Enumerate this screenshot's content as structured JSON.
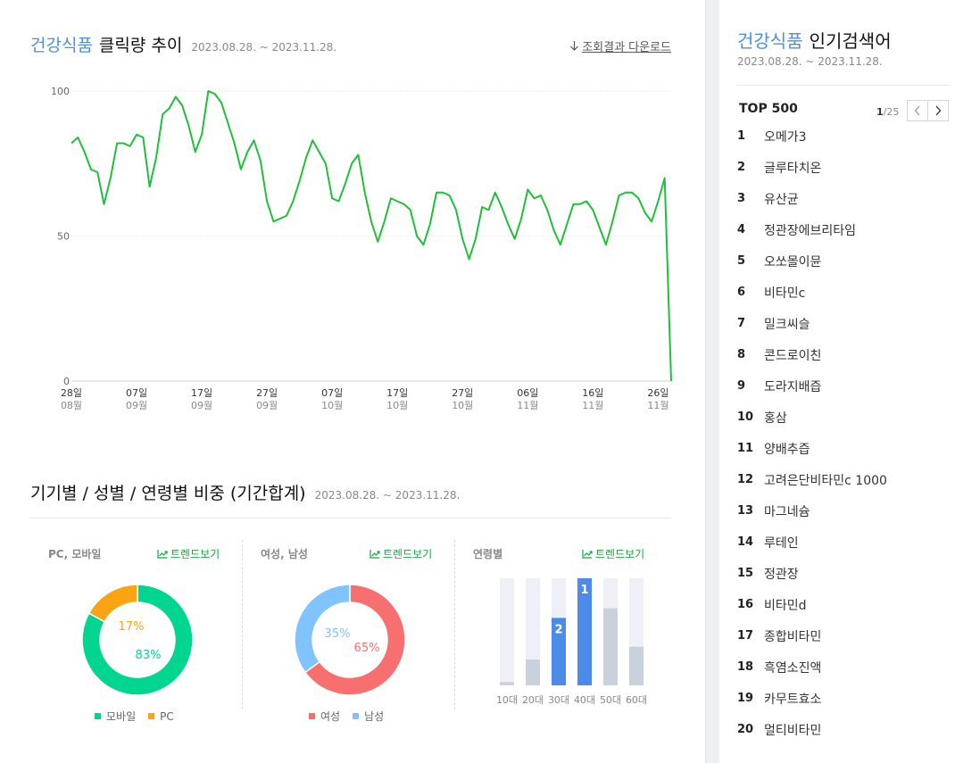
{
  "main": {
    "category": "건강식품",
    "title": "클릭량 추이",
    "period": "2023.08.28. ~ 2023.11.28.",
    "download_label": "조회결과 다운로드"
  },
  "chart_data": [
    {
      "type": "line",
      "title": "클릭량 추이",
      "ylim": [
        0,
        100
      ],
      "yticks": [
        0,
        50,
        100
      ],
      "grid": true,
      "x_tick_labels": [
        {
          "day": "28일",
          "month": "08월"
        },
        {
          "day": "07일",
          "month": "09월"
        },
        {
          "day": "17일",
          "month": "09월"
        },
        {
          "day": "27일",
          "month": "09월"
        },
        {
          "day": "07일",
          "month": "10월"
        },
        {
          "day": "17일",
          "month": "10월"
        },
        {
          "day": "27일",
          "month": "10월"
        },
        {
          "day": "06일",
          "month": "11월"
        },
        {
          "day": "16일",
          "month": "11월"
        },
        {
          "day": "26일",
          "month": "11월"
        }
      ],
      "x": [
        "2023-08-28",
        "2023-08-29",
        "2023-08-30",
        "2023-08-31",
        "2023-09-01",
        "2023-09-02",
        "2023-09-03",
        "2023-09-04",
        "2023-09-05",
        "2023-09-06",
        "2023-09-07",
        "2023-09-08",
        "2023-09-09",
        "2023-09-10",
        "2023-09-11",
        "2023-09-12",
        "2023-09-13",
        "2023-09-14",
        "2023-09-15",
        "2023-09-16",
        "2023-09-17",
        "2023-09-18",
        "2023-09-19",
        "2023-09-20",
        "2023-09-21",
        "2023-09-22",
        "2023-09-23",
        "2023-09-24",
        "2023-09-25",
        "2023-09-26",
        "2023-09-27",
        "2023-09-28",
        "2023-09-29",
        "2023-09-30",
        "2023-10-01",
        "2023-10-02",
        "2023-10-03",
        "2023-10-04",
        "2023-10-05",
        "2023-10-06",
        "2023-10-07",
        "2023-10-08",
        "2023-10-09",
        "2023-10-10",
        "2023-10-11",
        "2023-10-12",
        "2023-10-13",
        "2023-10-14",
        "2023-10-15",
        "2023-10-16",
        "2023-10-17",
        "2023-10-18",
        "2023-10-19",
        "2023-10-20",
        "2023-10-21",
        "2023-10-22",
        "2023-10-23",
        "2023-10-24",
        "2023-10-25",
        "2023-10-26",
        "2023-10-27",
        "2023-10-28",
        "2023-10-29",
        "2023-10-30",
        "2023-10-31",
        "2023-11-01",
        "2023-11-02",
        "2023-11-03",
        "2023-11-04",
        "2023-11-05",
        "2023-11-06",
        "2023-11-07",
        "2023-11-08",
        "2023-11-09",
        "2023-11-10",
        "2023-11-11",
        "2023-11-12",
        "2023-11-13",
        "2023-11-14",
        "2023-11-15",
        "2023-11-16",
        "2023-11-17",
        "2023-11-18",
        "2023-11-19",
        "2023-11-20",
        "2023-11-21",
        "2023-11-22",
        "2023-11-23",
        "2023-11-24",
        "2023-11-25",
        "2023-11-26",
        "2023-11-27",
        "2023-11-28"
      ],
      "values": [
        82,
        84,
        79,
        73,
        72,
        61,
        70,
        82,
        82,
        81,
        85,
        84,
        67,
        77,
        92,
        94,
        98,
        95,
        88,
        79,
        85,
        100,
        99,
        96,
        89,
        82,
        73,
        79,
        83,
        76,
        62,
        55,
        56,
        57,
        62,
        69,
        77,
        83,
        79,
        75,
        63,
        62,
        68,
        75,
        78,
        65,
        55,
        48,
        55,
        63,
        62,
        61,
        59,
        50,
        47,
        54,
        65,
        65,
        64,
        59,
        49,
        42,
        49,
        60,
        59,
        65,
        60,
        54,
        49,
        56,
        66,
        63,
        64,
        59,
        52,
        47,
        54,
        61,
        61,
        62,
        59,
        53,
        47,
        55,
        64,
        65,
        65,
        63,
        58,
        55,
        62,
        70,
        0
      ],
      "color": "#1fc039"
    },
    {
      "type": "pie",
      "title": "PC, 모바일",
      "labels": [
        "모바일",
        "PC"
      ],
      "values": [
        83,
        17
      ],
      "colors": [
        "#00d690",
        "#f9a413"
      ]
    },
    {
      "type": "pie",
      "title": "여성, 남성",
      "labels": [
        "여성",
        "남성"
      ],
      "values": [
        65,
        35
      ],
      "colors": [
        "#f76f6f",
        "#7fc4ff"
      ]
    },
    {
      "type": "bar",
      "title": "연령별",
      "categories": [
        "10대",
        "20대",
        "30대",
        "40대",
        "50대",
        "60대"
      ],
      "values": [
        3,
        24,
        63,
        100,
        72,
        36
      ],
      "rank_labels": [
        "",
        "",
        "2",
        "1",
        "",
        ""
      ],
      "ylim": [
        0,
        100
      ],
      "colors": {
        "top": "#4b8bea",
        "rest": "#c9d0de",
        "track": "#eef0f5"
      }
    }
  ],
  "section2": {
    "title": "기기별 / 성별 / 연령별 비중 (기간합계)",
    "period": "2023.08.28. ~ 2023.11.28.",
    "panel1": {
      "title": "PC, 모바일",
      "trend": "트렌드보기",
      "legend": [
        "모바일",
        "PC"
      ],
      "labels": [
        "83%",
        "17%"
      ]
    },
    "panel2": {
      "title": "여성, 남성",
      "trend": "트렌드보기",
      "legend": [
        "여성",
        "남성"
      ],
      "labels": [
        "65%",
        "35%"
      ]
    },
    "panel3": {
      "title": "연령별",
      "trend": "트렌드보기"
    }
  },
  "sidebar": {
    "category": "건강식품",
    "title": "인기검색어",
    "period": "2023.08.28. ~ 2023.11.28.",
    "top_label": "TOP 500",
    "page_current": "1",
    "page_total": "/25",
    "items": [
      {
        "rank": "1",
        "keyword": "오메가3"
      },
      {
        "rank": "2",
        "keyword": "글루타치온"
      },
      {
        "rank": "3",
        "keyword": "유산균"
      },
      {
        "rank": "4",
        "keyword": "정관장에브리타임"
      },
      {
        "rank": "5",
        "keyword": "오쏘몰이뮨"
      },
      {
        "rank": "6",
        "keyword": "비타민c"
      },
      {
        "rank": "7",
        "keyword": "밀크씨슬"
      },
      {
        "rank": "8",
        "keyword": "콘드로이친"
      },
      {
        "rank": "9",
        "keyword": "도라지배즙"
      },
      {
        "rank": "10",
        "keyword": "홍삼"
      },
      {
        "rank": "11",
        "keyword": "양배추즙"
      },
      {
        "rank": "12",
        "keyword": "고려은단비타민c 1000"
      },
      {
        "rank": "13",
        "keyword": "마그네슘"
      },
      {
        "rank": "14",
        "keyword": "루테인"
      },
      {
        "rank": "15",
        "keyword": "정관장"
      },
      {
        "rank": "16",
        "keyword": "비타민d"
      },
      {
        "rank": "17",
        "keyword": "종합비타민"
      },
      {
        "rank": "18",
        "keyword": "흑염소진액"
      },
      {
        "rank": "19",
        "keyword": "카무트효소"
      },
      {
        "rank": "20",
        "keyword": "멀티비타민"
      }
    ]
  }
}
